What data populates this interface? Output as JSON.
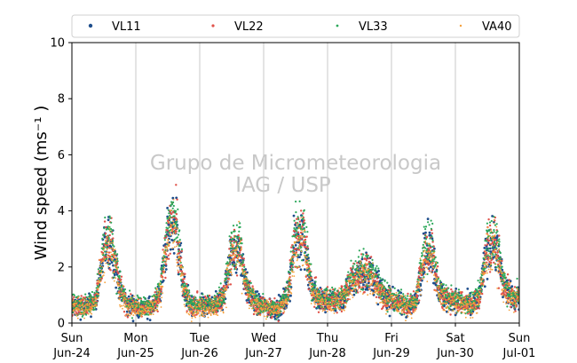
{
  "chart_data": {
    "type": "scatter",
    "title": "",
    "xlabel": "",
    "ylabel": "Wind speed (ms⁻¹ )",
    "ylim": [
      0,
      10
    ],
    "yticks": [
      0,
      2,
      4,
      6,
      8,
      10
    ],
    "xlim": [
      "2018-06-24",
      "2018-07-01"
    ],
    "xticks": [
      {
        "date": "2018-06-24",
        "day": "Sun",
        "label": "Jun-24"
      },
      {
        "date": "2018-06-25",
        "day": "Mon",
        "label": "Jun-25"
      },
      {
        "date": "2018-06-26",
        "day": "Tue",
        "label": "Jun-26"
      },
      {
        "date": "2018-06-27",
        "day": "Wed",
        "label": "Jun-27"
      },
      {
        "date": "2018-06-28",
        "day": "Thu",
        "label": "Jun-28"
      },
      {
        "date": "2018-06-29",
        "day": "Fri",
        "label": "Jun-29"
      },
      {
        "date": "2018-06-30",
        "day": "Sat",
        "label": "Jun-30"
      },
      {
        "date": "2018-07-01",
        "day": "Sun",
        "label": "Jul-01"
      }
    ],
    "grid": "vertical",
    "legend_position": "top",
    "watermark": [
      "Grupo de Micrometeorologia",
      "IAG / USP"
    ],
    "series": [
      {
        "name": "VL11",
        "color": "#1f4e8c"
      },
      {
        "name": "VL22",
        "color": "#e0524a"
      },
      {
        "name": "VL33",
        "color": "#2ca85a"
      },
      {
        "name": "VA40",
        "color": "#f5a03c"
      }
    ],
    "x": [
      "2018-06-24 00:00",
      "2018-06-24 03:00",
      "2018-06-24 06:00",
      "2018-06-24 09:00",
      "2018-06-24 12:00",
      "2018-06-24 15:00",
      "2018-06-24 18:00",
      "2018-06-24 21:00",
      "2018-06-25 00:00",
      "2018-06-25 03:00",
      "2018-06-25 06:00",
      "2018-06-25 09:00",
      "2018-06-25 12:00",
      "2018-06-25 15:00",
      "2018-06-25 18:00",
      "2018-06-25 21:00",
      "2018-06-26 00:00",
      "2018-06-26 03:00",
      "2018-06-26 06:00",
      "2018-06-26 09:00",
      "2018-06-26 12:00",
      "2018-06-26 15:00",
      "2018-06-26 18:00",
      "2018-06-26 21:00",
      "2018-06-27 00:00",
      "2018-06-27 03:00",
      "2018-06-27 06:00",
      "2018-06-27 09:00",
      "2018-06-27 12:00",
      "2018-06-27 15:00",
      "2018-06-27 18:00",
      "2018-06-27 21:00",
      "2018-06-28 00:00",
      "2018-06-28 03:00",
      "2018-06-28 06:00",
      "2018-06-28 09:00",
      "2018-06-28 12:00",
      "2018-06-28 15:00",
      "2018-06-28 18:00",
      "2018-06-28 21:00",
      "2018-06-29 00:00",
      "2018-06-29 03:00",
      "2018-06-29 06:00",
      "2018-06-29 09:00",
      "2018-06-29 12:00",
      "2018-06-29 15:00",
      "2018-06-29 18:00",
      "2018-06-29 21:00",
      "2018-06-30 00:00",
      "2018-06-30 03:00",
      "2018-06-30 06:00",
      "2018-06-30 09:00",
      "2018-06-30 12:00",
      "2018-06-30 15:00",
      "2018-06-30 18:00",
      "2018-06-30 21:00",
      "2018-07-01 00:00"
    ],
    "y_typical": [
      0.6,
      0.6,
      0.6,
      0.8,
      2.6,
      2.8,
      1.2,
      0.6,
      0.6,
      0.5,
      0.6,
      1.0,
      3.2,
      3.6,
      1.2,
      0.6,
      0.6,
      0.6,
      0.6,
      1.0,
      2.5,
      2.6,
      1.1,
      0.7,
      0.6,
      0.5,
      0.5,
      1.0,
      3.0,
      3.1,
      1.2,
      0.8,
      0.8,
      0.8,
      0.9,
      1.5,
      1.7,
      1.8,
      1.5,
      1.0,
      0.8,
      0.7,
      0.6,
      0.7,
      2.3,
      2.6,
      1.1,
      0.8,
      0.8,
      0.7,
      0.6,
      0.9,
      2.7,
      2.9,
      1.4,
      0.9,
      0.9
    ]
  }
}
